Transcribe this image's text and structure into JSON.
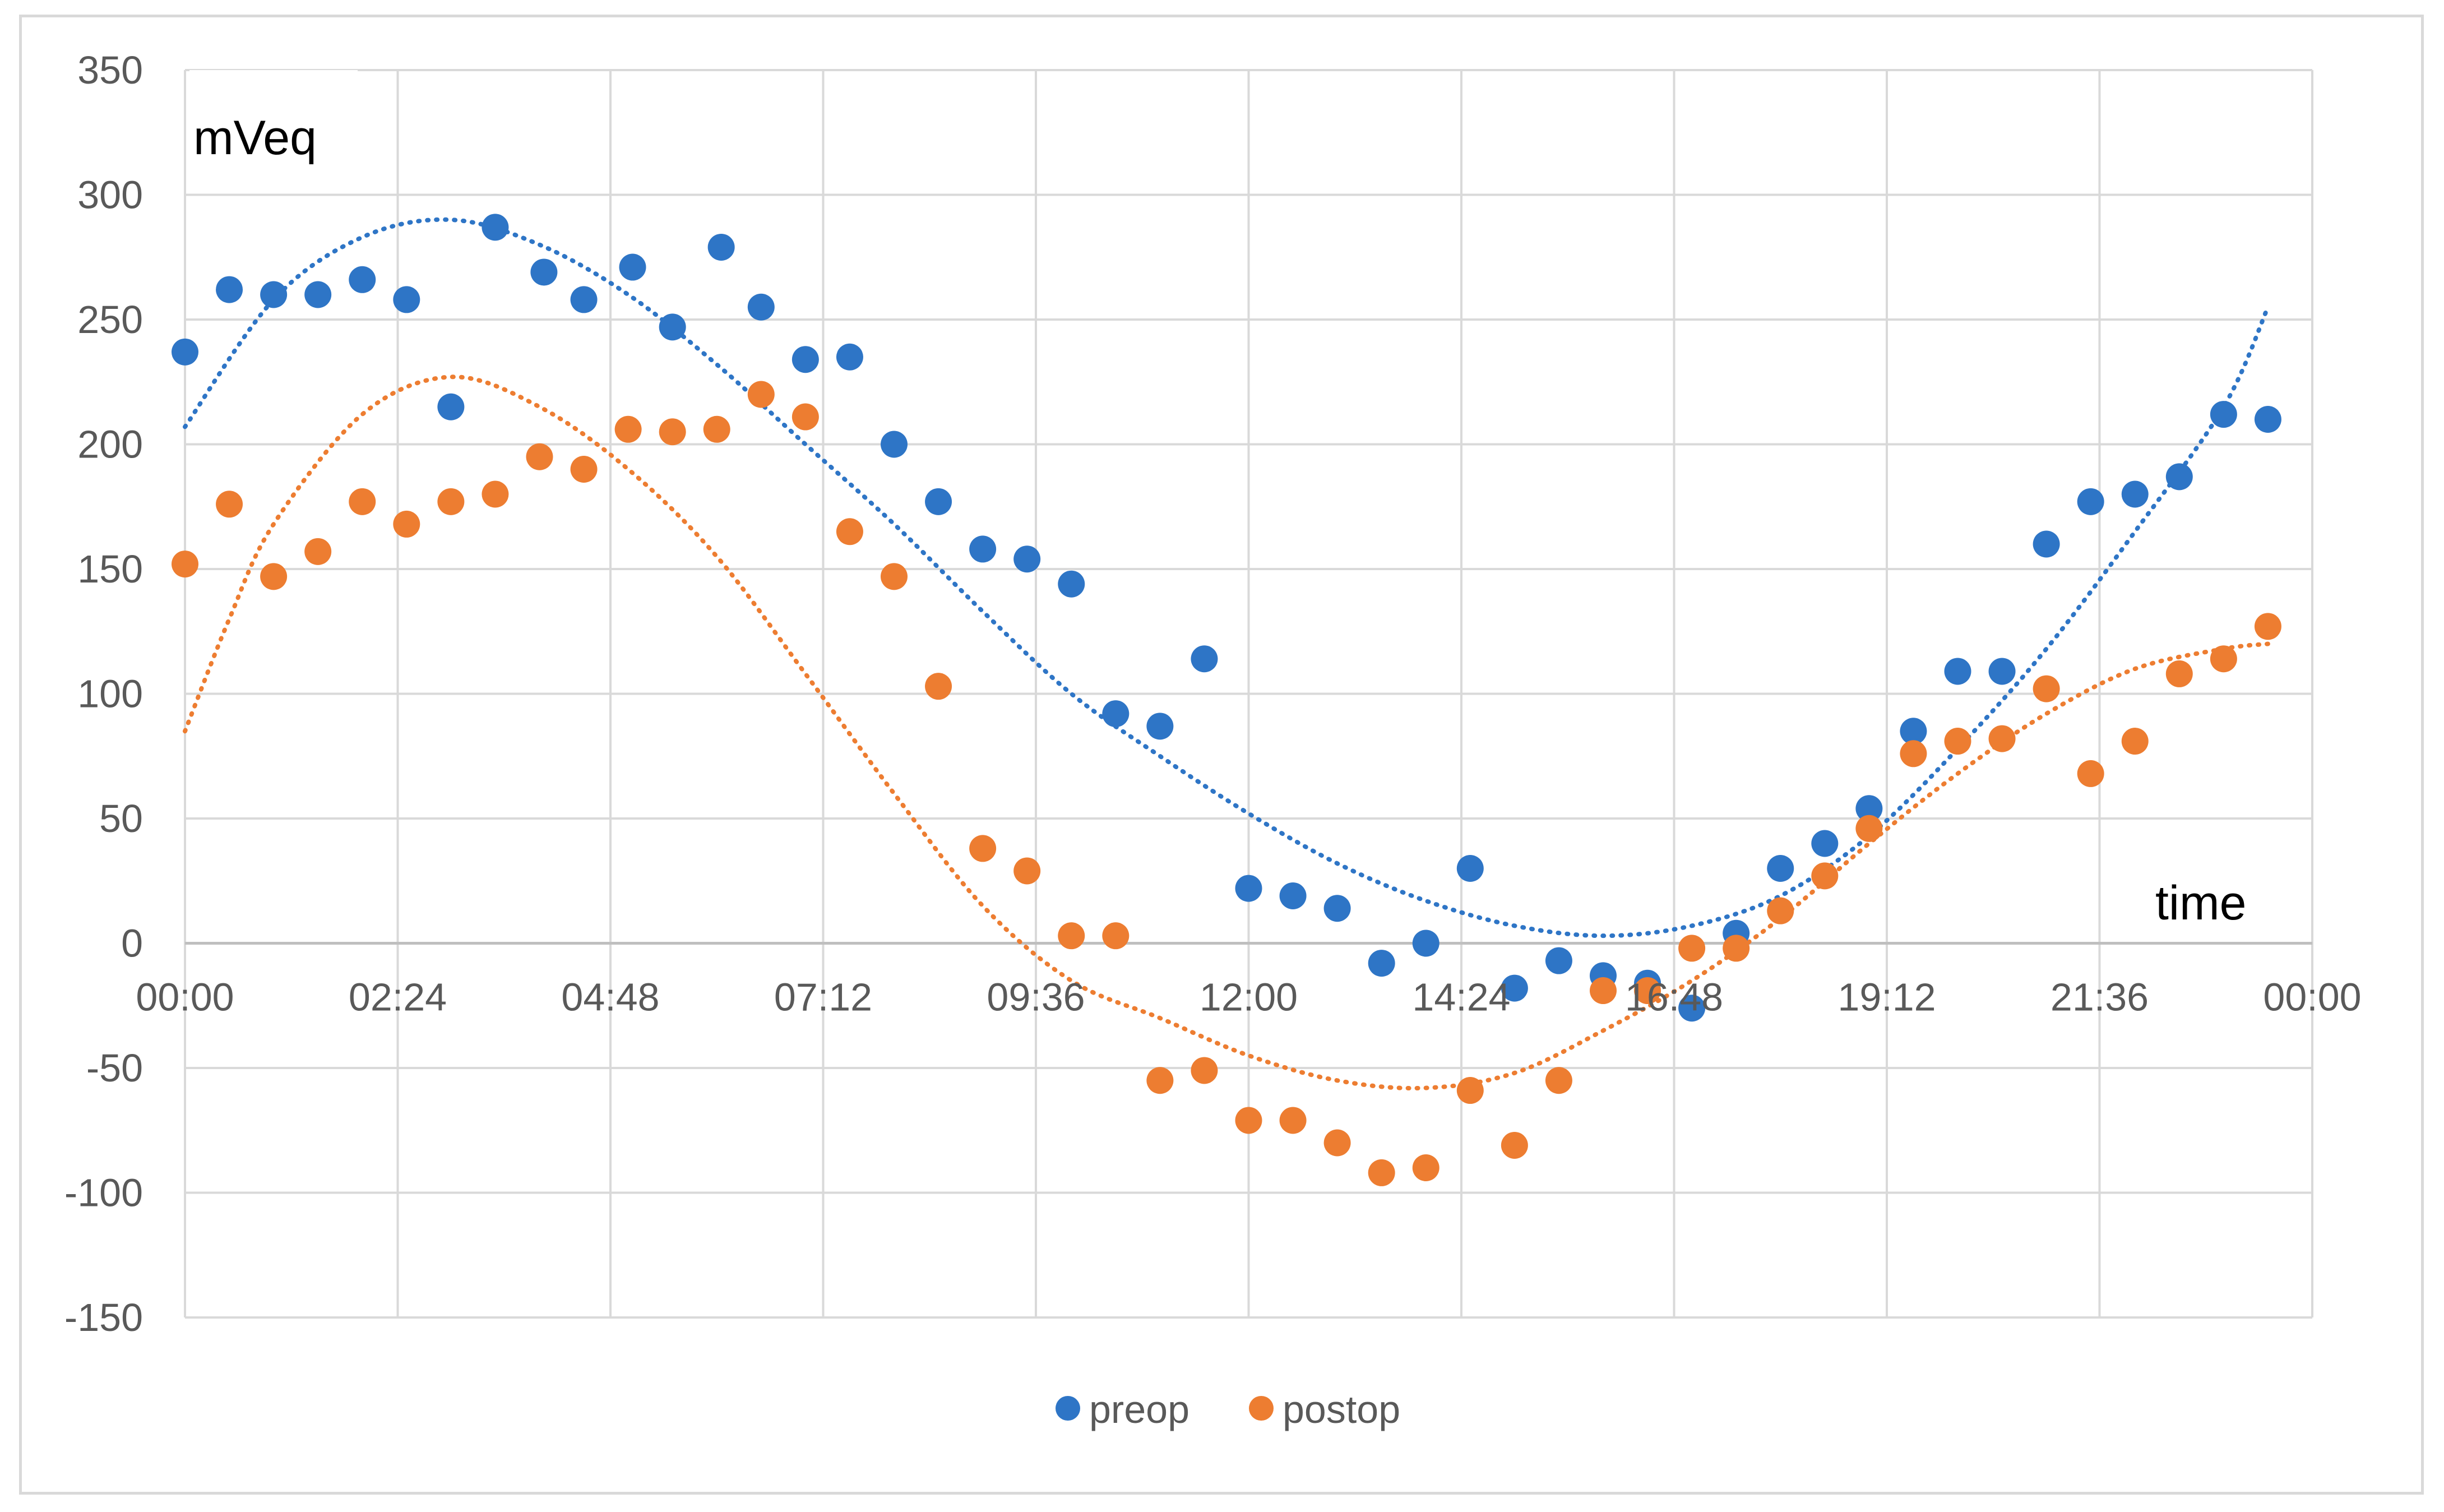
{
  "chart_data": {
    "type": "scatter",
    "title": "",
    "xlabel": "time",
    "ylabel": "mVeq",
    "x_ticks": [
      "00:00",
      "02:24",
      "04:48",
      "07:12",
      "09:36",
      "12:00",
      "14:24",
      "16:48",
      "19:12",
      "21:36",
      "00:00"
    ],
    "y_ticks": [
      "350",
      "300",
      "250",
      "200",
      "150",
      "100",
      "50",
      "0",
      "-50",
      "-100",
      "-150"
    ],
    "xlim": [
      "00:00",
      "24:00"
    ],
    "ylim": [
      -150,
      350
    ],
    "grid": true,
    "legend_position": "bottom",
    "trendline_style": "dotted",
    "series": [
      {
        "name": "preop",
        "color": "#2e75c6",
        "x": [
          "00:00",
          "00:30",
          "01:00",
          "01:30",
          "02:00",
          "02:30",
          "03:00",
          "03:30",
          "04:03",
          "04:30",
          "05:03",
          "05:30",
          "06:03",
          "06:30",
          "07:00",
          "07:30",
          "08:00",
          "08:30",
          "09:00",
          "09:30",
          "10:00",
          "10:30",
          "11:00",
          "11:30",
          "12:00",
          "12:30",
          "13:00",
          "13:30",
          "14:00",
          "14:30",
          "15:00",
          "15:30",
          "16:00",
          "16:30",
          "17:00",
          "17:30",
          "18:00",
          "18:30",
          "19:00",
          "19:30",
          "20:00",
          "20:30",
          "21:00",
          "21:30",
          "22:00",
          "22:30",
          "23:00",
          "23:30"
        ],
        "values": [
          237,
          262,
          260,
          260,
          266,
          258,
          215,
          287,
          269,
          258,
          271,
          247,
          279,
          255,
          234,
          235,
          200,
          177,
          158,
          154,
          144,
          92,
          87,
          114,
          22,
          19,
          14,
          -8,
          0,
          30,
          -18,
          -7,
          -13,
          -16,
          -26,
          4,
          30,
          40,
          54,
          85,
          109,
          109,
          160,
          177,
          180,
          187,
          212,
          210
        ],
        "trendline": {
          "x": [
            "00:00",
            "01:00",
            "02:00",
            "03:00",
            "04:00",
            "05:00",
            "06:00",
            "07:00",
            "08:00",
            "09:00",
            "10:00",
            "11:00",
            "12:00",
            "13:00",
            "14:00",
            "15:00",
            "16:00",
            "17:00",
            "18:00",
            "19:00",
            "20:00",
            "21:00",
            "22:00",
            "23:00",
            "23:30"
          ],
          "values": [
            207,
            258,
            283,
            290,
            280,
            260,
            232,
            200,
            168,
            133,
            100,
            75,
            52,
            32,
            17,
            7,
            3,
            7,
            19,
            43,
            78,
            118,
            165,
            215,
            255
          ]
        }
      },
      {
        "name": "postop",
        "color": "#ed7d31",
        "x": [
          "00:00",
          "00:30",
          "01:00",
          "01:30",
          "02:00",
          "02:30",
          "03:00",
          "03:30",
          "04:00",
          "04:30",
          "05:00",
          "05:30",
          "06:00",
          "06:30",
          "07:00",
          "07:30",
          "08:00",
          "08:30",
          "09:00",
          "09:30",
          "10:00",
          "10:30",
          "11:00",
          "11:30",
          "12:00",
          "12:30",
          "13:00",
          "13:30",
          "14:00",
          "14:30",
          "15:00",
          "15:30",
          "16:00",
          "16:30",
          "17:00",
          "17:30",
          "18:00",
          "18:30",
          "19:00",
          "19:30",
          "20:00",
          "20:30",
          "21:00",
          "21:30",
          "22:00",
          "22:30",
          "23:00",
          "23:30"
        ],
        "values": [
          152,
          176,
          147,
          157,
          177,
          168,
          177,
          180,
          195,
          190,
          206,
          205,
          206,
          220,
          211,
          165,
          147,
          103,
          38,
          29,
          3,
          3,
          -55,
          -51,
          -71,
          -71,
          -80,
          -92,
          -90,
          -59,
          -81,
          -55,
          -19,
          -19,
          -2,
          -2,
          13,
          27,
          46,
          76,
          81,
          82,
          102,
          68,
          81,
          108,
          114,
          127
        ],
        "trendline": {
          "x": [
            "00:00",
            "00:30",
            "01:00",
            "02:00",
            "03:00",
            "04:00",
            "05:00",
            "06:00",
            "07:00",
            "08:00",
            "09:00",
            "10:00",
            "11:00",
            "12:00",
            "13:00",
            "14:00",
            "15:00",
            "16:00",
            "17:00",
            "18:00",
            "19:00",
            "20:00",
            "21:00",
            "22:00",
            "23:00",
            "23:30"
          ],
          "values": [
            85,
            130,
            168,
            212,
            227,
            215,
            190,
            155,
            108,
            60,
            15,
            -15,
            -30,
            -45,
            -55,
            -58,
            -52,
            -35,
            -15,
            10,
            40,
            68,
            92,
            110,
            118,
            120
          ]
        }
      }
    ]
  }
}
